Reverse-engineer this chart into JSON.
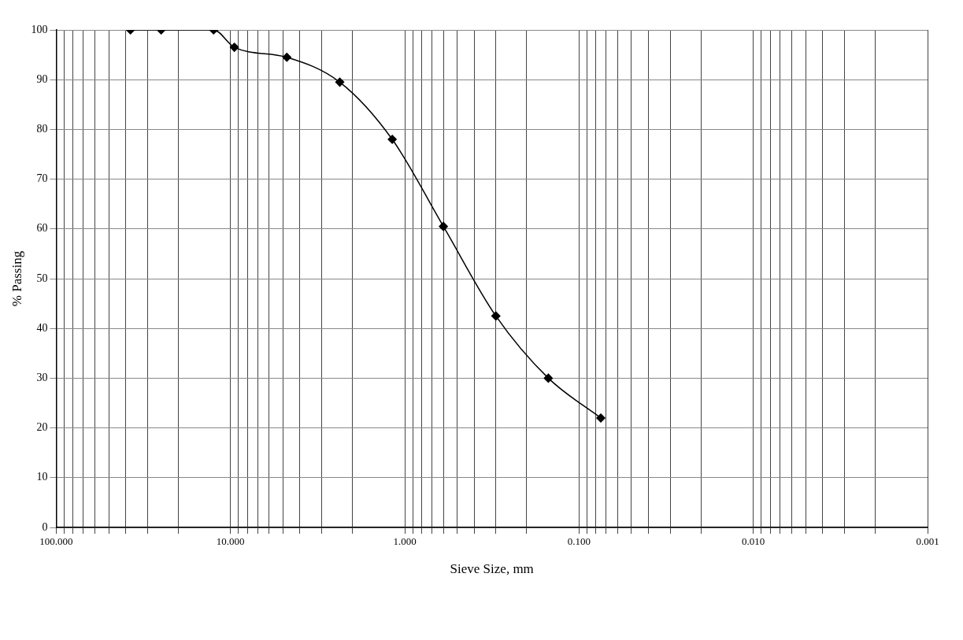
{
  "chart_data": {
    "type": "line",
    "xlabel": "Sieve Size, mm",
    "ylabel": "% Passing",
    "x": [
      37.5,
      25,
      12.5,
      9.5,
      4.75,
      2.36,
      1.18,
      0.6,
      0.3,
      0.15,
      0.075
    ],
    "series": [
      {
        "color": "#000000",
        "values": [
          100,
          100,
          100,
          96.5,
          94.5,
          89.5,
          78,
          60.5,
          42.5,
          30,
          22
        ]
      }
    ],
    "log": "x",
    "xlim": [
      100,
      0.001
    ],
    "ylim": [
      0,
      100
    ],
    "xticks": [
      {
        "value": 100,
        "label": "100.000"
      },
      {
        "value": 90,
        "label": null
      },
      {
        "value": 80,
        "label": null
      },
      {
        "value": 70,
        "label": null
      },
      {
        "value": 60,
        "label": null
      },
      {
        "value": 50,
        "label": null
      },
      {
        "value": 40,
        "label": null
      },
      {
        "value": 30,
        "label": null
      },
      {
        "value": 20,
        "label": null
      },
      {
        "value": 10,
        "label": "10.000"
      },
      {
        "value": 9,
        "label": null
      },
      {
        "value": 8,
        "label": null
      },
      {
        "value": 7,
        "label": null
      },
      {
        "value": 6,
        "label": null
      },
      {
        "value": 5,
        "label": null
      },
      {
        "value": 4,
        "label": null
      },
      {
        "value": 3,
        "label": null
      },
      {
        "value": 2,
        "label": null
      },
      {
        "value": 1,
        "label": "1.000"
      },
      {
        "value": 0.9,
        "label": null
      },
      {
        "value": 0.8,
        "label": null
      },
      {
        "value": 0.7,
        "label": null
      },
      {
        "value": 0.6,
        "label": null
      },
      {
        "value": 0.5,
        "label": null
      },
      {
        "value": 0.4,
        "label": null
      },
      {
        "value": 0.3,
        "label": null
      },
      {
        "value": 0.2,
        "label": null
      },
      {
        "value": 0.1,
        "label": "0.100"
      },
      {
        "value": 0.09,
        "label": null
      },
      {
        "value": 0.08,
        "label": null
      },
      {
        "value": 0.07,
        "label": null
      },
      {
        "value": 0.06,
        "label": null
      },
      {
        "value": 0.05,
        "label": null
      },
      {
        "value": 0.04,
        "label": null
      },
      {
        "value": 0.03,
        "label": null
      },
      {
        "value": 0.02,
        "label": null
      },
      {
        "value": 0.01,
        "label": "0.010"
      },
      {
        "value": 0.009,
        "label": null
      },
      {
        "value": 0.008,
        "label": null
      },
      {
        "value": 0.007,
        "label": null
      },
      {
        "value": 0.006,
        "label": null
      },
      {
        "value": 0.005,
        "label": null
      },
      {
        "value": 0.004,
        "label": null
      },
      {
        "value": 0.003,
        "label": null
      },
      {
        "value": 0.002,
        "label": null
      },
      {
        "value": 0.001,
        "label": "0.001"
      }
    ],
    "yticks": [
      0,
      10,
      20,
      30,
      40,
      50,
      60,
      70,
      80,
      90,
      100
    ],
    "grid": true,
    "legend": false,
    "marker": "diamond",
    "line_style": "solid"
  }
}
